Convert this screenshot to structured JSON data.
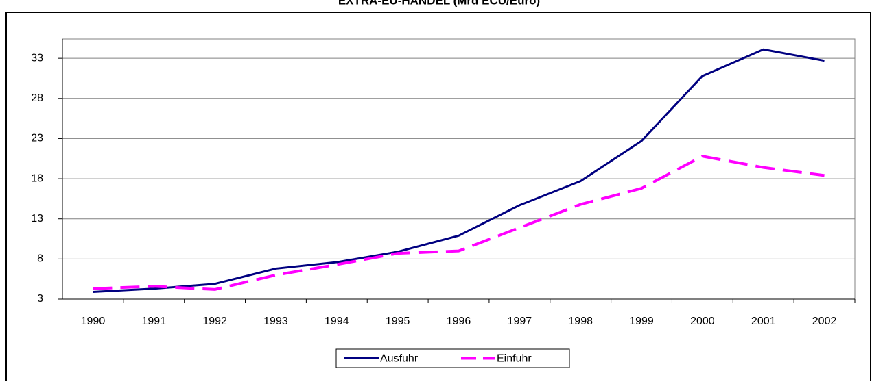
{
  "chart_data": {
    "type": "line",
    "title": "EXTRA-EU-HANDEL (Mrd ECU/Euro)",
    "categories": [
      "1990",
      "1991",
      "1992",
      "1993",
      "1994",
      "1995",
      "1996",
      "1997",
      "1998",
      "1999",
      "2000",
      "2001",
      "2002"
    ],
    "series": [
      {
        "name": "Ausfuhr",
        "color": "#000080",
        "dash": false,
        "values": [
          3.9,
          4.3,
          4.9,
          6.8,
          7.6,
          8.9,
          10.9,
          14.7,
          17.7,
          22.7,
          30.8,
          34.1,
          32.7
        ]
      },
      {
        "name": "Einfuhr",
        "color": "#ff00ff",
        "dash": true,
        "values": [
          4.3,
          4.6,
          4.2,
          6.0,
          7.3,
          8.7,
          9.0,
          11.9,
          14.8,
          16.8,
          20.8,
          19.4,
          18.4
        ]
      }
    ],
    "ylim": [
      3,
      35.4
    ],
    "yticks": [
      3,
      8,
      13,
      18,
      23,
      28,
      33
    ],
    "grid": true,
    "legend": "bottom"
  }
}
